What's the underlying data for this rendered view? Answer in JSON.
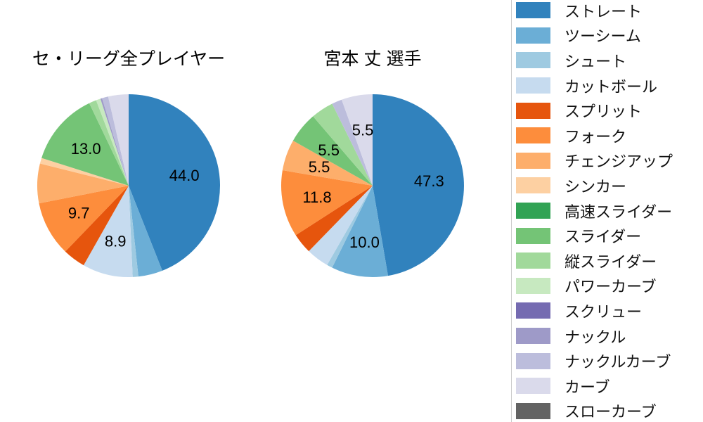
{
  "page": {
    "background": "#ffffff"
  },
  "chart_data": [
    {
      "type": "pie",
      "title": "セ・リーグ全プレイヤー",
      "values_unit": "percent",
      "start_angle_deg": 90,
      "direction": "clockwise",
      "value_label_format": "one_decimal",
      "segments": [
        {
          "label": "ストレート",
          "value": 44.0,
          "color": "#3182bd",
          "value_label_shown": true
        },
        {
          "label": "ツーシーム",
          "value": 4.3,
          "color": "#6baed6",
          "value_label_shown": false
        },
        {
          "label": "シュート",
          "value": 1.0,
          "color": "#9ecae1",
          "value_label_shown": false
        },
        {
          "label": "カットボール",
          "value": 8.9,
          "color": "#c6dbef",
          "value_label_shown": true
        },
        {
          "label": "スプリット",
          "value": 4.0,
          "color": "#e6550d",
          "value_label_shown": false
        },
        {
          "label": "フォーク",
          "value": 9.7,
          "color": "#fd8d3c",
          "value_label_shown": true
        },
        {
          "label": "チェンジアップ",
          "value": 7.0,
          "color": "#fdae6b",
          "value_label_shown": false
        },
        {
          "label": "シンカー",
          "value": 1.0,
          "color": "#fdd0a2",
          "value_label_shown": false
        },
        {
          "label": "高速スライダー",
          "value": 0.0,
          "color": "#31a354",
          "value_label_shown": false
        },
        {
          "label": "スライダー",
          "value": 13.0,
          "color": "#74c476",
          "value_label_shown": true
        },
        {
          "label": "縦スライダー",
          "value": 1.3,
          "color": "#a1d99b",
          "value_label_shown": false
        },
        {
          "label": "パワーカーブ",
          "value": 0.8,
          "color": "#c7e9c0",
          "value_label_shown": false
        },
        {
          "label": "スクリュー",
          "value": 0.0,
          "color": "#756bb1",
          "value_label_shown": false
        },
        {
          "label": "ナックル",
          "value": 0.3,
          "color": "#9e9ac8",
          "value_label_shown": false
        },
        {
          "label": "ナックルカーブ",
          "value": 1.1,
          "color": "#bcbddc",
          "value_label_shown": false
        },
        {
          "label": "カーブ",
          "value": 3.6,
          "color": "#dadaeb",
          "value_label_shown": false
        },
        {
          "label": "スローカーブ",
          "value": 0.0,
          "color": "#636363",
          "value_label_shown": false
        }
      ]
    },
    {
      "type": "pie",
      "title": "宮本 丈 選手",
      "values_unit": "percent",
      "start_angle_deg": 90,
      "direction": "clockwise",
      "value_label_format": "one_decimal",
      "segments": [
        {
          "label": "ストレート",
          "value": 47.3,
          "color": "#3182bd",
          "value_label_shown": true
        },
        {
          "label": "ツーシーム",
          "value": 10.0,
          "color": "#6baed6",
          "value_label_shown": true
        },
        {
          "label": "シュート",
          "value": 1.0,
          "color": "#9ecae1",
          "value_label_shown": false
        },
        {
          "label": "カットボール",
          "value": 4.0,
          "color": "#c6dbef",
          "value_label_shown": false
        },
        {
          "label": "スプリット",
          "value": 3.6,
          "color": "#e6550d",
          "value_label_shown": false
        },
        {
          "label": "フォーク",
          "value": 11.8,
          "color": "#fd8d3c",
          "value_label_shown": true
        },
        {
          "label": "チェンジアップ",
          "value": 5.5,
          "color": "#fdae6b",
          "value_label_shown": true
        },
        {
          "label": "シンカー",
          "value": 0.0,
          "color": "#fdd0a2",
          "value_label_shown": false
        },
        {
          "label": "高速スライダー",
          "value": 0.0,
          "color": "#31a354",
          "value_label_shown": false
        },
        {
          "label": "スライダー",
          "value": 5.5,
          "color": "#74c476",
          "value_label_shown": true
        },
        {
          "label": "縦スライダー",
          "value": 4.0,
          "color": "#a1d99b",
          "value_label_shown": false
        },
        {
          "label": "パワーカーブ",
          "value": 0.0,
          "color": "#c7e9c0",
          "value_label_shown": false
        },
        {
          "label": "スクリュー",
          "value": 0.0,
          "color": "#756bb1",
          "value_label_shown": false
        },
        {
          "label": "ナックル",
          "value": 0.0,
          "color": "#9e9ac8",
          "value_label_shown": false
        },
        {
          "label": "ナックルカーブ",
          "value": 1.8,
          "color": "#bcbddc",
          "value_label_shown": false
        },
        {
          "label": "カーブ",
          "value": 5.5,
          "color": "#dadaeb",
          "value_label_shown": true
        },
        {
          "label": "スローカーブ",
          "value": 0.0,
          "color": "#636363",
          "value_label_shown": false
        }
      ]
    }
  ],
  "legend": {
    "items": [
      {
        "label": "ストレート",
        "color": "#3182bd"
      },
      {
        "label": "ツーシーム",
        "color": "#6baed6"
      },
      {
        "label": "シュート",
        "color": "#9ecae1"
      },
      {
        "label": "カットボール",
        "color": "#c6dbef"
      },
      {
        "label": "スプリット",
        "color": "#e6550d"
      },
      {
        "label": "フォーク",
        "color": "#fd8d3c"
      },
      {
        "label": "チェンジアップ",
        "color": "#fdae6b"
      },
      {
        "label": "シンカー",
        "color": "#fdd0a2"
      },
      {
        "label": "高速スライダー",
        "color": "#31a354"
      },
      {
        "label": "スライダー",
        "color": "#74c476"
      },
      {
        "label": "縦スライダー",
        "color": "#a1d99b"
      },
      {
        "label": "パワーカーブ",
        "color": "#c7e9c0"
      },
      {
        "label": "スクリュー",
        "color": "#756bb1"
      },
      {
        "label": "ナックル",
        "color": "#9e9ac8"
      },
      {
        "label": "ナックルカーブ",
        "color": "#bcbddc"
      },
      {
        "label": "カーブ",
        "color": "#dadaeb"
      },
      {
        "label": "スローカーブ",
        "color": "#636363"
      }
    ]
  }
}
